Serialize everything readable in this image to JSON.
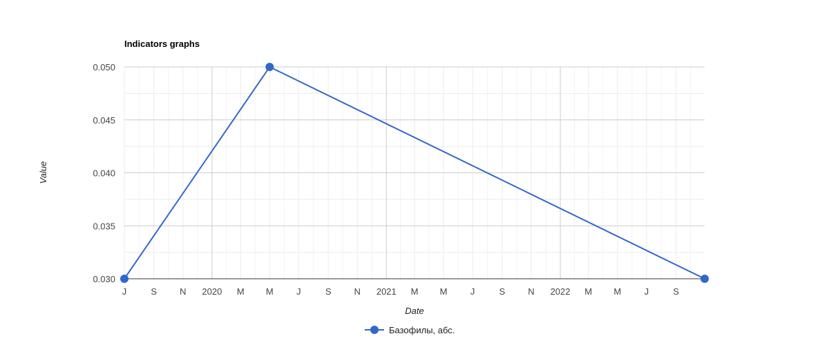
{
  "chart_data": {
    "type": "line",
    "title": "Indicators graphs",
    "xlabel": "Date",
    "ylabel": "Value",
    "x_range": [
      "2019-07-01",
      "2022-10-31"
    ],
    "ylim": [
      0.03,
      0.05
    ],
    "y_ticks": [
      "0.030",
      "0.035",
      "0.040",
      "0.045",
      "0.050"
    ],
    "x_ticks": [
      {
        "date": "2019-07-01",
        "label": "J",
        "major": false
      },
      {
        "date": "2019-09-01",
        "label": "S",
        "major": false
      },
      {
        "date": "2019-11-01",
        "label": "N",
        "major": false
      },
      {
        "date": "2020-01-01",
        "label": "2020",
        "major": true
      },
      {
        "date": "2020-03-01",
        "label": "M",
        "major": false
      },
      {
        "date": "2020-05-01",
        "label": "M",
        "major": false
      },
      {
        "date": "2020-07-01",
        "label": "J",
        "major": false
      },
      {
        "date": "2020-09-01",
        "label": "S",
        "major": false
      },
      {
        "date": "2020-11-01",
        "label": "N",
        "major": false
      },
      {
        "date": "2021-01-01",
        "label": "2021",
        "major": true
      },
      {
        "date": "2021-03-01",
        "label": "M",
        "major": false
      },
      {
        "date": "2021-05-01",
        "label": "M",
        "major": false
      },
      {
        "date": "2021-07-01",
        "label": "J",
        "major": false
      },
      {
        "date": "2021-09-01",
        "label": "S",
        "major": false
      },
      {
        "date": "2021-11-01",
        "label": "N",
        "major": false
      },
      {
        "date": "2022-01-01",
        "label": "2022",
        "major": true
      },
      {
        "date": "2022-03-01",
        "label": "M",
        "major": false
      },
      {
        "date": "2022-05-01",
        "label": "M",
        "major": false
      },
      {
        "date": "2022-07-01",
        "label": "J",
        "major": false
      },
      {
        "date": "2022-09-01",
        "label": "S",
        "major": false
      }
    ],
    "series": [
      {
        "name": "Базофилы, абс.",
        "color": "#3366cc",
        "points": [
          {
            "x": "2019-07-01",
            "y": 0.03
          },
          {
            "x": "2020-05-01",
            "y": 0.05
          },
          {
            "x": "2022-10-31",
            "y": 0.03
          }
        ]
      }
    ],
    "grid": true,
    "legend_position": "bottom"
  }
}
